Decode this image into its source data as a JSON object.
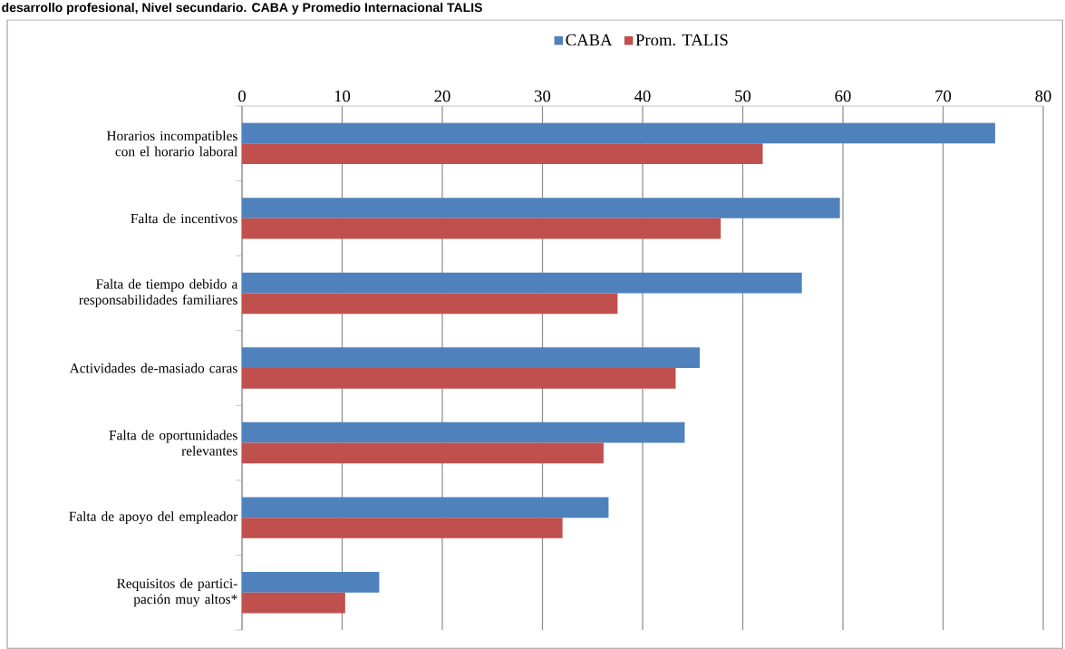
{
  "chart_data": {
    "type": "bar",
    "orientation": "horizontal",
    "title": "desarrollo profesional, Nivel secundario. CABA y Promedio Internacional TALIS",
    "categories": [
      "Horarios incompatibles con el horario laboral",
      "Falta de incentivos",
      "Falta de tiempo debido a responsabilidades familiares",
      "Actividades de-masiado caras",
      "Falta de oportunidades relevantes",
      "Falta de apoyo del empleador",
      "Requisitos de partici-pación muy altos*"
    ],
    "series": [
      {
        "name": "CABA",
        "color": "#4f81bd",
        "values": [
          75.2,
          59.7,
          55.9,
          45.7,
          44.2,
          36.6,
          13.7
        ]
      },
      {
        "name": "Prom. TALIS",
        "color": "#c0504d",
        "values": [
          52.0,
          47.8,
          37.5,
          43.3,
          36.1,
          32.0,
          10.3
        ]
      }
    ],
    "xlim": [
      0,
      80
    ],
    "xticks": [
      0,
      10,
      20,
      30,
      40,
      50,
      60,
      70,
      80
    ],
    "grid": "x",
    "legend": "top"
  }
}
